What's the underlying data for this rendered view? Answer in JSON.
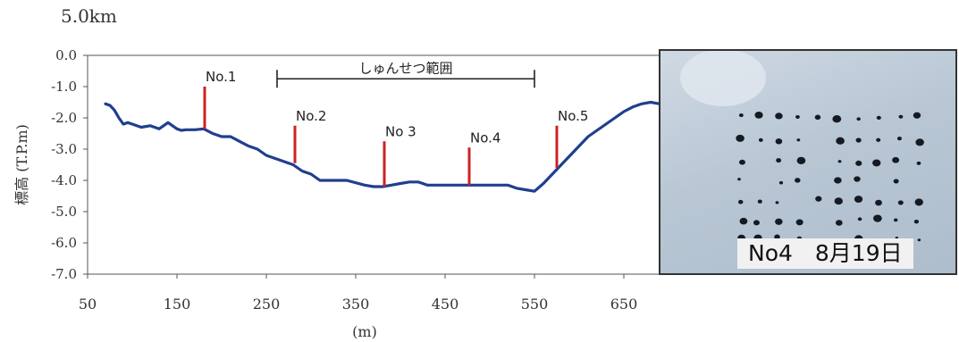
{
  "section_label": "5.0km",
  "photo": {
    "caption": "No4　8月19日"
  },
  "chart_data": {
    "type": "line",
    "xlabel": "(m)",
    "ylabel": "標高 (T.P.m)",
    "xlim": [
      50,
      690
    ],
    "ylim": [
      -7.0,
      0.0
    ],
    "x_ticks": [
      50,
      150,
      250,
      350,
      450,
      550,
      650
    ],
    "y_ticks": [
      "0.0",
      "-1.0",
      "-2.0",
      "-3.0",
      "-4.0",
      "-5.0",
      "-6.0",
      "-7.0"
    ],
    "series": [
      {
        "color": "#1f3f8f",
        "x": [
          70,
          75,
          80,
          85,
          90,
          95,
          100,
          110,
          120,
          130,
          140,
          150,
          155,
          160,
          170,
          180,
          190,
          200,
          210,
          220,
          230,
          240,
          250,
          260,
          270,
          280,
          290,
          300,
          310,
          320,
          340,
          360,
          370,
          380,
          390,
          400,
          410,
          420,
          430,
          440,
          450,
          460,
          470,
          480,
          490,
          500,
          510,
          520,
          530,
          540,
          550,
          560,
          570,
          580,
          590,
          600,
          610,
          620,
          630,
          640,
          650,
          660,
          670,
          680,
          690
        ],
        "y": [
          -1.55,
          -1.6,
          -1.75,
          -2.0,
          -2.2,
          -2.15,
          -2.2,
          -2.3,
          -2.25,
          -2.35,
          -2.15,
          -2.35,
          -2.4,
          -2.38,
          -2.38,
          -2.35,
          -2.5,
          -2.6,
          -2.6,
          -2.75,
          -2.9,
          -3.0,
          -3.2,
          -3.3,
          -3.4,
          -3.5,
          -3.7,
          -3.8,
          -4.0,
          -4.0,
          -4.0,
          -4.15,
          -4.2,
          -4.2,
          -4.15,
          -4.1,
          -4.05,
          -4.05,
          -4.15,
          -4.15,
          -4.15,
          -4.15,
          -4.15,
          -4.15,
          -4.15,
          -4.15,
          -4.15,
          -4.15,
          -4.25,
          -4.3,
          -4.35,
          -4.1,
          -3.8,
          -3.5,
          -3.2,
          -2.9,
          -2.6,
          -2.4,
          -2.2,
          -2.0,
          -1.8,
          -1.65,
          -1.55,
          -1.5,
          -1.55
        ]
      }
    ],
    "markers": [
      {
        "label": "No.1",
        "x": 181,
        "y_top": -1.0,
        "y_bottom": -2.35
      },
      {
        "label": "No.2",
        "x": 282,
        "y_top": -2.25,
        "y_bottom": -3.45
      },
      {
        "label": "No 3",
        "x": 382,
        "y_top": -2.75,
        "y_bottom": -4.2
      },
      {
        "label": "No.4",
        "x": 477,
        "y_top": -2.95,
        "y_bottom": -4.15
      },
      {
        "label": "No.5",
        "x": 575,
        "y_top": -2.25,
        "y_bottom": -3.6
      }
    ],
    "range_annotation": {
      "label": "しゅんせつ範囲",
      "x_start": 262,
      "x_end": 550,
      "y": -0.75
    },
    "marker_color": "#cc2222",
    "grid": false
  }
}
